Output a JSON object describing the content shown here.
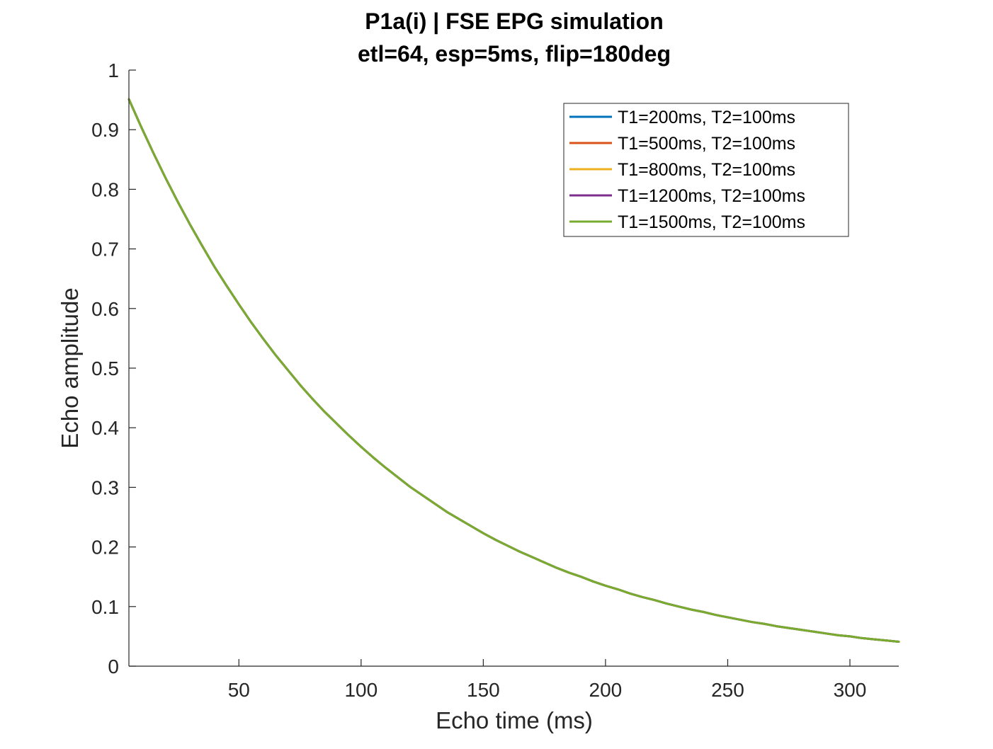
{
  "chart_data": {
    "type": "line",
    "title": [
      "P1a(i) | FSE EPG simulation",
      "etl=64, esp=5ms, flip=180deg"
    ],
    "xlabel": "Echo time (ms)",
    "ylabel": "Echo amplitude",
    "xlim": [
      5,
      320
    ],
    "ylim": [
      0,
      1
    ],
    "xticks": [
      50,
      100,
      150,
      200,
      250,
      300
    ],
    "xtick_labels": [
      "50",
      "100",
      "150",
      "200",
      "250",
      "300"
    ],
    "yticks": [
      0,
      0.1,
      0.2,
      0.3,
      0.4,
      0.5,
      0.6,
      0.7,
      0.8,
      0.9,
      1
    ],
    "ytick_labels": [
      "0",
      "0.1",
      "0.2",
      "0.3",
      "0.4",
      "0.5",
      "0.6",
      "0.7",
      "0.8",
      "0.9",
      "1"
    ],
    "grid": false,
    "legend_position": "top-right",
    "x": [
      5,
      10,
      15,
      20,
      25,
      30,
      35,
      40,
      45,
      50,
      55,
      60,
      65,
      70,
      75,
      80,
      85,
      90,
      95,
      100,
      105,
      110,
      115,
      120,
      125,
      130,
      135,
      140,
      145,
      150,
      155,
      160,
      165,
      170,
      175,
      180,
      185,
      190,
      195,
      200,
      205,
      210,
      215,
      220,
      225,
      230,
      235,
      240,
      245,
      250,
      255,
      260,
      265,
      270,
      275,
      280,
      285,
      290,
      295,
      300,
      305,
      310,
      315,
      320
    ],
    "series": [
      {
        "name": "T1=200ms, T2=100ms",
        "color": "#0072BD",
        "values": [
          0.951,
          0.905,
          0.861,
          0.819,
          0.779,
          0.741,
          0.705,
          0.67,
          0.638,
          0.607,
          0.577,
          0.549,
          0.522,
          0.497,
          0.472,
          0.449,
          0.427,
          0.407,
          0.387,
          0.368,
          0.35,
          0.333,
          0.317,
          0.301,
          0.287,
          0.273,
          0.259,
          0.247,
          0.235,
          0.223,
          0.212,
          0.202,
          0.192,
          0.183,
          0.174,
          0.165,
          0.157,
          0.15,
          0.142,
          0.135,
          0.129,
          0.122,
          0.116,
          0.111,
          0.105,
          0.1,
          0.095,
          0.091,
          0.086,
          0.082,
          0.078,
          0.074,
          0.071,
          0.067,
          0.064,
          0.061,
          0.058,
          0.055,
          0.052,
          0.05,
          0.047,
          0.045,
          0.043,
          0.041
        ]
      },
      {
        "name": "T1=500ms, T2=100ms",
        "color": "#D95319",
        "values": [
          0.951,
          0.905,
          0.861,
          0.819,
          0.779,
          0.741,
          0.705,
          0.67,
          0.638,
          0.607,
          0.577,
          0.549,
          0.522,
          0.497,
          0.472,
          0.449,
          0.427,
          0.407,
          0.387,
          0.368,
          0.35,
          0.333,
          0.317,
          0.301,
          0.287,
          0.273,
          0.259,
          0.247,
          0.235,
          0.223,
          0.212,
          0.202,
          0.192,
          0.183,
          0.174,
          0.165,
          0.157,
          0.15,
          0.142,
          0.135,
          0.129,
          0.122,
          0.116,
          0.111,
          0.105,
          0.1,
          0.095,
          0.091,
          0.086,
          0.082,
          0.078,
          0.074,
          0.071,
          0.067,
          0.064,
          0.061,
          0.058,
          0.055,
          0.052,
          0.05,
          0.047,
          0.045,
          0.043,
          0.041
        ]
      },
      {
        "name": "T1=800ms, T2=100ms",
        "color": "#EDB120",
        "values": [
          0.951,
          0.905,
          0.861,
          0.819,
          0.779,
          0.741,
          0.705,
          0.67,
          0.638,
          0.607,
          0.577,
          0.549,
          0.522,
          0.497,
          0.472,
          0.449,
          0.427,
          0.407,
          0.387,
          0.368,
          0.35,
          0.333,
          0.317,
          0.301,
          0.287,
          0.273,
          0.259,
          0.247,
          0.235,
          0.223,
          0.212,
          0.202,
          0.192,
          0.183,
          0.174,
          0.165,
          0.157,
          0.15,
          0.142,
          0.135,
          0.129,
          0.122,
          0.116,
          0.111,
          0.105,
          0.1,
          0.095,
          0.091,
          0.086,
          0.082,
          0.078,
          0.074,
          0.071,
          0.067,
          0.064,
          0.061,
          0.058,
          0.055,
          0.052,
          0.05,
          0.047,
          0.045,
          0.043,
          0.041
        ]
      },
      {
        "name": "T1=1200ms, T2=100ms",
        "color": "#7E2F8E",
        "values": [
          0.951,
          0.905,
          0.861,
          0.819,
          0.779,
          0.741,
          0.705,
          0.67,
          0.638,
          0.607,
          0.577,
          0.549,
          0.522,
          0.497,
          0.472,
          0.449,
          0.427,
          0.407,
          0.387,
          0.368,
          0.35,
          0.333,
          0.317,
          0.301,
          0.287,
          0.273,
          0.259,
          0.247,
          0.235,
          0.223,
          0.212,
          0.202,
          0.192,
          0.183,
          0.174,
          0.165,
          0.157,
          0.15,
          0.142,
          0.135,
          0.129,
          0.122,
          0.116,
          0.111,
          0.105,
          0.1,
          0.095,
          0.091,
          0.086,
          0.082,
          0.078,
          0.074,
          0.071,
          0.067,
          0.064,
          0.061,
          0.058,
          0.055,
          0.052,
          0.05,
          0.047,
          0.045,
          0.043,
          0.041
        ]
      },
      {
        "name": "T1=1500ms, T2=100ms",
        "color": "#77AC30",
        "values": [
          0.951,
          0.905,
          0.861,
          0.819,
          0.779,
          0.741,
          0.705,
          0.67,
          0.638,
          0.607,
          0.577,
          0.549,
          0.522,
          0.497,
          0.472,
          0.449,
          0.427,
          0.407,
          0.387,
          0.368,
          0.35,
          0.333,
          0.317,
          0.301,
          0.287,
          0.273,
          0.259,
          0.247,
          0.235,
          0.223,
          0.212,
          0.202,
          0.192,
          0.183,
          0.174,
          0.165,
          0.157,
          0.15,
          0.142,
          0.135,
          0.129,
          0.122,
          0.116,
          0.111,
          0.105,
          0.1,
          0.095,
          0.091,
          0.086,
          0.082,
          0.078,
          0.074,
          0.071,
          0.067,
          0.064,
          0.061,
          0.058,
          0.055,
          0.052,
          0.05,
          0.047,
          0.045,
          0.043,
          0.041
        ]
      }
    ]
  }
}
